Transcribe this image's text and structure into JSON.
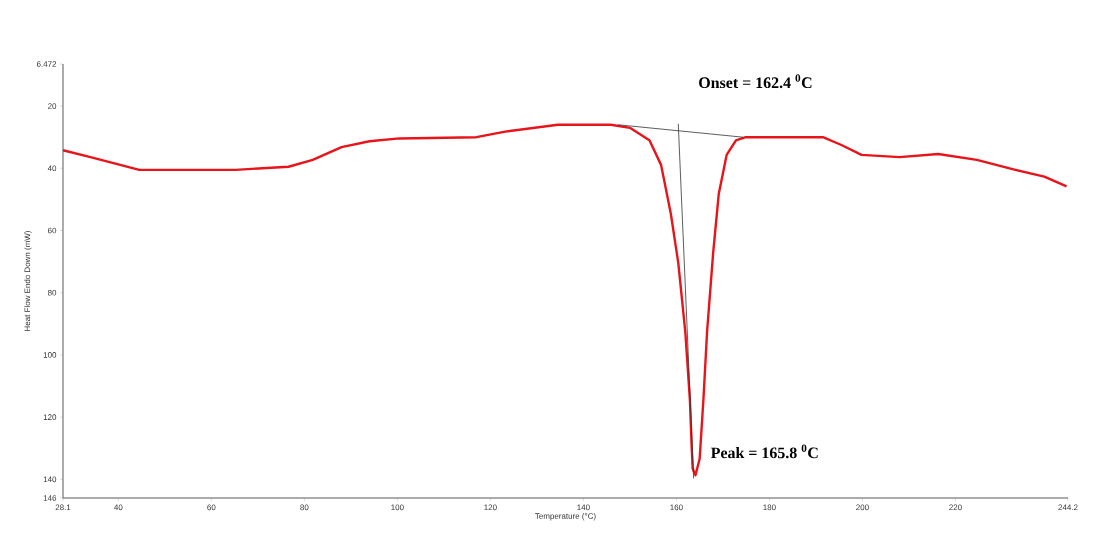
{
  "chart_data": {
    "type": "line",
    "xlabel": "Temperature (°C)",
    "ylabel": "Heat Flow Endo Down (mW)",
    "xlim": [
      28.1,
      244.2
    ],
    "ylim": [
      146,
      6.472
    ],
    "xticks": [
      28.1,
      40,
      60,
      80,
      100,
      120,
      140,
      160,
      180,
      200,
      220,
      244.2
    ],
    "yticks": [
      6.472,
      20,
      40,
      60,
      80,
      100,
      120,
      140,
      146
    ],
    "grid": false,
    "marker": "none",
    "series": [
      {
        "color": "#e8141a",
        "x": [
          28.1,
          34,
          40.4,
          44.5,
          65.2,
          76.6,
          81.8,
          88,
          94,
          100.4,
          117,
          123.2,
          134.5,
          145.9,
          150,
          154.2,
          156.7,
          158.8,
          160.4,
          161.9,
          162.9,
          163.3,
          163.5,
          164.1,
          165,
          165.8,
          166.6,
          167.9,
          169.1,
          170.8,
          172.8,
          174.9,
          191.5,
          195.6,
          199.8,
          208,
          216.3,
          224.6,
          232.9,
          239.1,
          243.9
        ],
        "values": [
          34.2,
          36.4,
          38.9,
          40.5,
          40.5,
          39.5,
          37.3,
          33.2,
          31.3,
          30.4,
          30,
          28.2,
          26,
          26,
          27,
          31,
          38.9,
          54.6,
          70.4,
          92.4,
          114.5,
          130.2,
          136.5,
          138.7,
          133.4,
          114.5,
          92.4,
          67.2,
          48.3,
          35.7,
          31,
          30,
          30,
          32.6,
          35.7,
          36.4,
          35.4,
          37.3,
          40.5,
          42.7,
          45.8
        ]
      },
      {
        "type": "line",
        "color": "#333333",
        "x": [
          147.4,
          174.3
        ],
        "values": [
          26,
          30
        ]
      },
      {
        "type": "line",
        "color": "#333333",
        "x": [
          160.4,
          163.7
        ],
        "values": [
          25.7,
          139.7
        ]
      }
    ],
    "annotations": [
      "Onset = 162.4 $^{0}$C",
      "Peak = 165.8 $^{0}$C"
    ]
  }
}
